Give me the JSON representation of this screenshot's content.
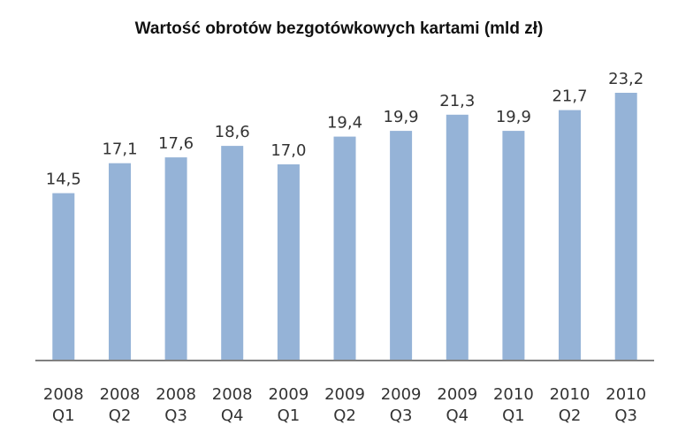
{
  "chart_data": {
    "type": "bar",
    "title": "Wartość obrotów bezgotówkowych kartami (mld zł)",
    "xlabel": "",
    "ylabel": "",
    "categories": [
      [
        "2008",
        "Q1"
      ],
      [
        "2008",
        "Q2"
      ],
      [
        "2008",
        "Q3"
      ],
      [
        "2008",
        "Q4"
      ],
      [
        "2009",
        "Q1"
      ],
      [
        "2009",
        "Q2"
      ],
      [
        "2009",
        "Q3"
      ],
      [
        "2009",
        "Q4"
      ],
      [
        "2010",
        "Q1"
      ],
      [
        "2010",
        "Q2"
      ],
      [
        "2010",
        "Q3"
      ]
    ],
    "values": [
      14.5,
      17.1,
      17.6,
      18.6,
      17.0,
      19.4,
      19.9,
      21.3,
      19.9,
      21.7,
      23.2
    ],
    "data_labels": [
      "14,5",
      "17,1",
      "17,6",
      "18,6",
      "17,0",
      "19,4",
      "19,9",
      "21,3",
      "19,9",
      "21,7",
      "23,2"
    ],
    "ylim": [
      0,
      23.2
    ],
    "grid": false,
    "legend": "none",
    "colors": {
      "bar": "#95b3d7",
      "axis": "#808080",
      "text": "#333333"
    }
  }
}
